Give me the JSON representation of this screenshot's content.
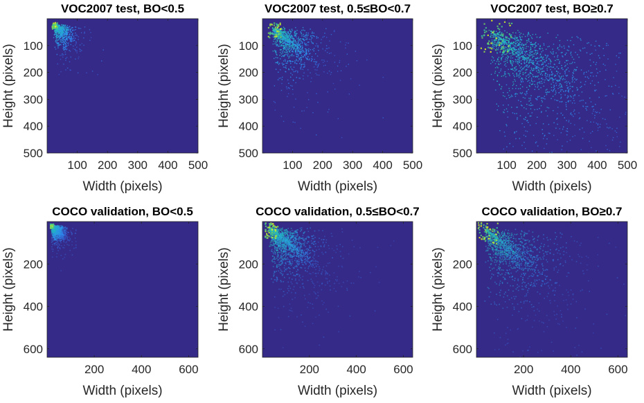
{
  "chart_data": [
    {
      "type": "heatmap",
      "title": "VOC2007 test, BO<0.5",
      "xlabel": "Width (pixels)",
      "ylabel": "Height (pixels)",
      "xlim": [
        0,
        500
      ],
      "ylim": [
        0,
        500
      ],
      "y_reversed": true,
      "xticks": [
        100,
        200,
        300,
        400,
        500
      ],
      "yticks": [
        100,
        200,
        300,
        400,
        500
      ],
      "density": {
        "peak_x": 20,
        "peak_y": 20,
        "spread_x": 30,
        "spread_y": 45,
        "tail_to": 260,
        "intensity": 0.35,
        "max": 1.0
      },
      "colormap": [
        "#3e26a8",
        "#2f8df3",
        "#1fbfb9",
        "#5ecc6a",
        "#f9fb0e"
      ],
      "background": "#352a87"
    },
    {
      "type": "heatmap",
      "title": "VOC2007 test, 0.5≤BO<0.7",
      "xlabel": "Width (pixels)",
      "ylabel": "Height (pixels)",
      "xlim": [
        0,
        500
      ],
      "ylim": [
        0,
        500
      ],
      "y_reversed": true,
      "xticks": [
        100,
        200,
        300,
        400,
        500
      ],
      "yticks": [
        100,
        200,
        300,
        400,
        500
      ],
      "density": {
        "peak_x": 30,
        "peak_y": 30,
        "spread_x": 70,
        "spread_y": 90,
        "tail_to": 400,
        "intensity": 0.55,
        "max": 1.0
      },
      "colormap": [
        "#3e26a8",
        "#2f8df3",
        "#1fbfb9",
        "#5ecc6a",
        "#f9fb0e"
      ],
      "background": "#352a87"
    },
    {
      "type": "heatmap",
      "title": "VOC2007 test, BO≥0.7",
      "xlabel": "Width (pixels)",
      "ylabel": "Height (pixels)",
      "xlim": [
        0,
        500
      ],
      "ylim": [
        0,
        500
      ],
      "y_reversed": true,
      "xticks": [
        100,
        200,
        300,
        400,
        500
      ],
      "yticks": [
        100,
        200,
        300,
        400,
        500
      ],
      "density": {
        "peak_x": 40,
        "peak_y": 40,
        "spread_x": 180,
        "spread_y": 200,
        "tail_to": 500,
        "intensity": 1.0,
        "max": 1.0
      },
      "colormap": [
        "#3e26a8",
        "#2f8df3",
        "#1fbfb9",
        "#5ecc6a",
        "#f9fb0e"
      ],
      "background": "#352a87"
    },
    {
      "type": "heatmap",
      "title": "COCO validation, BO<0.5",
      "xlabel": "Width (pixels)",
      "ylabel": "Height (pixels)",
      "xlim": [
        0,
        640
      ],
      "ylim": [
        0,
        640
      ],
      "y_reversed": true,
      "xticks": [
        200,
        400,
        600
      ],
      "yticks": [
        200,
        400,
        600
      ],
      "density": {
        "peak_x": 15,
        "peak_y": 15,
        "spread_x": 25,
        "spread_y": 35,
        "tail_to": 120,
        "intensity": 0.7,
        "max": 1.0
      },
      "colormap": [
        "#3e26a8",
        "#2f8df3",
        "#1fbfb9",
        "#5ecc6a",
        "#f9fb0e"
      ],
      "background": "#352a87"
    },
    {
      "type": "heatmap",
      "title": "COCO validation, 0.5≤BO<0.7",
      "xlabel": "Width (pixels)",
      "ylabel": "Height (pixels)",
      "xlim": [
        0,
        640
      ],
      "ylim": [
        0,
        640
      ],
      "y_reversed": true,
      "xticks": [
        200,
        400,
        600
      ],
      "yticks": [
        200,
        400,
        600
      ],
      "density": {
        "peak_x": 25,
        "peak_y": 25,
        "spread_x": 90,
        "spread_y": 120,
        "tail_to": 600,
        "intensity": 1.0,
        "max": 1.0
      },
      "colormap": [
        "#3e26a8",
        "#2f8df3",
        "#1fbfb9",
        "#5ecc6a",
        "#f9fb0e"
      ],
      "background": "#352a87"
    },
    {
      "type": "heatmap",
      "title": "COCO validation, BO≥0.7",
      "xlabel": "Width (pixels)",
      "ylabel": "Height (pixels)",
      "xlim": [
        0,
        640
      ],
      "ylim": [
        0,
        640
      ],
      "y_reversed": true,
      "xticks": [
        200,
        400,
        600
      ],
      "yticks": [
        200,
        400,
        600
      ],
      "density": {
        "peak_x": 30,
        "peak_y": 30,
        "spread_x": 140,
        "spread_y": 170,
        "tail_to": 640,
        "intensity": 0.8,
        "max": 1.0
      },
      "colormap": [
        "#3e26a8",
        "#2f8df3",
        "#1fbfb9",
        "#5ecc6a",
        "#f9fb0e"
      ],
      "background": "#352a87"
    }
  ]
}
